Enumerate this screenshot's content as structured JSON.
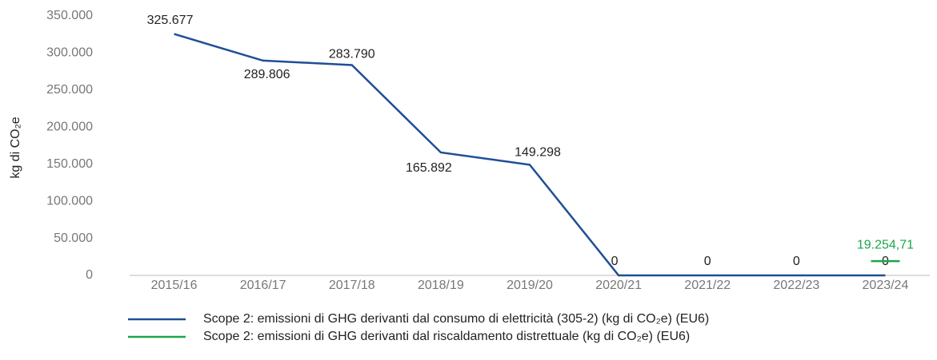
{
  "chart_data": {
    "type": "line",
    "y_label": "kg di CO₂e",
    "categories": [
      "2015/16",
      "2016/17",
      "2017/18",
      "2018/19",
      "2019/20",
      "2020/21",
      "2021/22",
      "2022/23",
      "2023/24"
    ],
    "series": [
      {
        "name": "Scope 2: emissioni di GHG derivanti dal consumo di elettricità (305-2) (kg di CO₂e) (EU6)",
        "color": "#1f4e96",
        "values": [
          325677,
          289806,
          283790,
          165892,
          149298,
          0,
          0,
          0,
          0
        ],
        "value_labels": [
          "325.677",
          "289.806",
          "283.790",
          "165.892",
          "149.298",
          "0",
          "0",
          "0",
          "0"
        ]
      },
      {
        "name": "Scope 2: emissioni di GHG derivanti dal riscaldamento distrettuale (kg di CO₂e) (EU6)",
        "color": "#1aa64a",
        "values": [
          null,
          null,
          null,
          null,
          null,
          null,
          null,
          null,
          19254.71
        ],
        "value_labels": [
          null,
          null,
          null,
          null,
          null,
          null,
          null,
          null,
          "19.254,71"
        ]
      }
    ],
    "ylim": [
      0,
      350000
    ],
    "yticks": [
      0,
      {
        "value": 50000,
        "label": "50.000"
      },
      {
        "value": 100000,
        "label": "100.000"
      },
      {
        "value": 150000,
        "label": "150.000"
      },
      {
        "value": 200000,
        "label": "200.000"
      },
      {
        "value": 250000,
        "label": "250.000"
      },
      {
        "value": 300000,
        "label": "300.000"
      },
      {
        "value": 350000,
        "label": "350.000"
      }
    ],
    "grid": false
  }
}
